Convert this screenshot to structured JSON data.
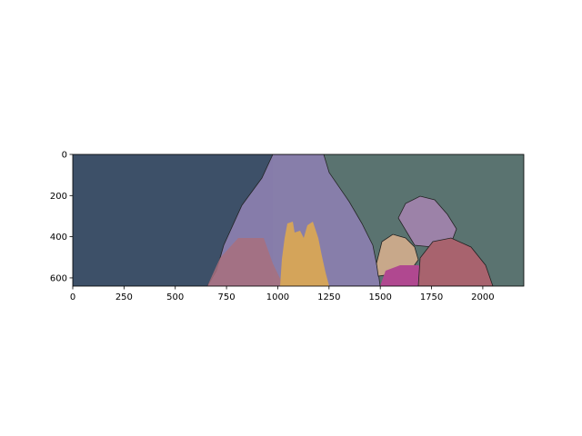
{
  "figure": {
    "image_extent": {
      "x": [
        0,
        2200
      ],
      "y": [
        640,
        0
      ]
    },
    "x_ticks": [
      {
        "value": 0,
        "label": "0"
      },
      {
        "value": 250,
        "label": "250"
      },
      {
        "value": 500,
        "label": "500"
      },
      {
        "value": 750,
        "label": "750"
      },
      {
        "value": 1000,
        "label": "1000"
      },
      {
        "value": 1250,
        "label": "1250"
      },
      {
        "value": 1500,
        "label": "1500"
      },
      {
        "value": 1750,
        "label": "1750"
      },
      {
        "value": 2000,
        "label": "2000"
      }
    ],
    "y_ticks": [
      {
        "value": 0,
        "label": "0"
      },
      {
        "value": 200,
        "label": "200"
      },
      {
        "value": 400,
        "label": "400"
      },
      {
        "value": 600,
        "label": "600"
      }
    ]
  },
  "segmentation": {
    "background_left_color": "#3d5068",
    "background_right_color": "#5a7370",
    "regions": [
      {
        "name": "central-object",
        "color": "#8a7fae"
      },
      {
        "name": "yellow-structure",
        "color": "#d4a45a"
      },
      {
        "name": "pink-region-left",
        "color": "#a8707e"
      },
      {
        "name": "pink-region-right",
        "color": "#a8636e"
      },
      {
        "name": "purple-cylinder",
        "color": "#9c82a8"
      },
      {
        "name": "tan-object",
        "color": "#c8a88a"
      },
      {
        "name": "magenta-region",
        "color": "#b04890"
      }
    ]
  }
}
